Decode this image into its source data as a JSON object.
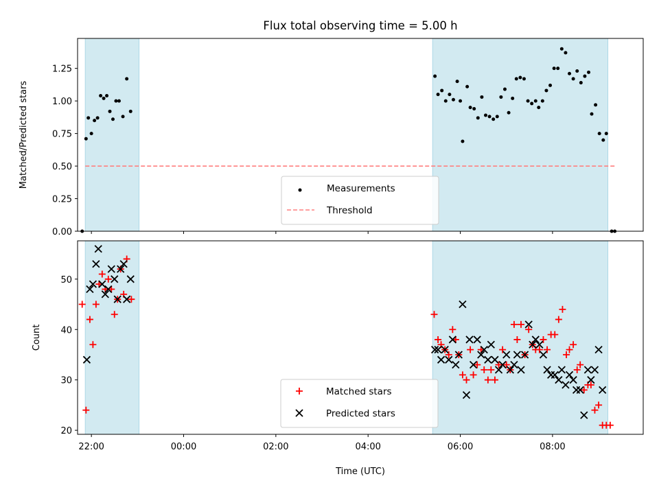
{
  "title": "Flux total observing time = 5.00 h",
  "xlabel": "Time (UTC)",
  "colors": {
    "shade": "#add8e6",
    "measurement": "#000000",
    "threshold": "#ff7f7f",
    "matched": "#ff0000",
    "predicted": "#000000"
  },
  "chart_data": [
    {
      "type": "scatter",
      "panel": "top",
      "ylabel": "Matched/Predicted stars",
      "xlim": [
        "21:42",
        "09:58"
      ],
      "ylim": [
        0,
        1.48
      ],
      "yticks": [
        "0.00",
        "0.25",
        "0.50",
        "0.75",
        "1.00",
        "1.25"
      ],
      "grid": false,
      "legend_position": "lower-center",
      "shaded_intervals": [
        [
          "21:52",
          "23:02"
        ],
        [
          "05:24",
          "09:12"
        ]
      ],
      "threshold": {
        "name": "Threshold",
        "y": 0.5,
        "x_from": "21:52",
        "x_to": "09:23",
        "style": "dashed"
      },
      "series": [
        {
          "name": "Measurements",
          "marker": "dot",
          "points": [
            [
              "21:48",
              0.0
            ],
            [
              "21:53",
              0.71
            ],
            [
              "21:56",
              0.87
            ],
            [
              "22:00",
              0.75
            ],
            [
              "22:04",
              0.85
            ],
            [
              "22:08",
              0.87
            ],
            [
              "22:12",
              1.04
            ],
            [
              "22:16",
              1.02
            ],
            [
              "22:20",
              1.04
            ],
            [
              "22:24",
              0.92
            ],
            [
              "22:28",
              0.86
            ],
            [
              "22:32",
              1.0
            ],
            [
              "22:36",
              1.0
            ],
            [
              "22:41",
              0.88
            ],
            [
              "22:46",
              1.17
            ],
            [
              "22:51",
              0.92
            ],
            [
              "05:27",
              1.19
            ],
            [
              "05:31",
              1.05
            ],
            [
              "05:36",
              1.08
            ],
            [
              "05:41",
              1.0
            ],
            [
              "05:46",
              1.05
            ],
            [
              "05:51",
              1.01
            ],
            [
              "05:56",
              1.15
            ],
            [
              "06:00",
              1.0
            ],
            [
              "06:03",
              0.69
            ],
            [
              "06:09",
              1.11
            ],
            [
              "06:13",
              0.95
            ],
            [
              "06:18",
              0.94
            ],
            [
              "06:23",
              0.87
            ],
            [
              "06:28",
              1.03
            ],
            [
              "06:33",
              0.89
            ],
            [
              "06:38",
              0.88
            ],
            [
              "06:43",
              0.86
            ],
            [
              "06:48",
              0.88
            ],
            [
              "06:53",
              1.03
            ],
            [
              "06:58",
              1.09
            ],
            [
              "07:03",
              0.91
            ],
            [
              "07:08",
              1.02
            ],
            [
              "07:13",
              1.17
            ],
            [
              "07:18",
              1.18
            ],
            [
              "07:23",
              1.17
            ],
            [
              "07:28",
              1.0
            ],
            [
              "07:33",
              0.98
            ],
            [
              "07:38",
              1.0
            ],
            [
              "07:42",
              0.95
            ],
            [
              "07:47",
              1.0
            ],
            [
              "07:52",
              1.08
            ],
            [
              "07:57",
              1.12
            ],
            [
              "08:02",
              1.25
            ],
            [
              "08:07",
              1.25
            ],
            [
              "08:12",
              1.4
            ],
            [
              "08:17",
              1.37
            ],
            [
              "08:22",
              1.21
            ],
            [
              "08:27",
              1.17
            ],
            [
              "08:32",
              1.23
            ],
            [
              "08:37",
              1.14
            ],
            [
              "08:42",
              1.19
            ],
            [
              "08:47",
              1.22
            ],
            [
              "08:51",
              0.9
            ],
            [
              "08:56",
              0.97
            ],
            [
              "09:01",
              0.75
            ],
            [
              "09:06",
              0.7
            ],
            [
              "09:10",
              0.75
            ],
            [
              "09:17",
              0.0
            ],
            [
              "09:21",
              0.0
            ]
          ]
        }
      ]
    },
    {
      "type": "scatter",
      "panel": "bottom",
      "ylabel": "Count",
      "xlim": [
        "21:42",
        "09:58"
      ],
      "ylim": [
        19.2,
        57.6
      ],
      "yticks": [
        "20",
        "30",
        "40",
        "50"
      ],
      "grid": false,
      "legend_position": "lower-center",
      "shaded_intervals": [
        [
          "21:52",
          "23:02"
        ],
        [
          "05:24",
          "09:12"
        ]
      ],
      "xticks": [
        "22:00",
        "00:00",
        "02:00",
        "04:00",
        "06:00",
        "08:00"
      ],
      "series": [
        {
          "name": "Matched stars",
          "marker": "plus",
          "points": [
            [
              "21:48",
              45
            ],
            [
              "21:53",
              24
            ],
            [
              "21:58",
              42
            ],
            [
              "22:02",
              37
            ],
            [
              "22:06",
              45
            ],
            [
              "22:10",
              49
            ],
            [
              "22:14",
              51
            ],
            [
              "22:18",
              48
            ],
            [
              "22:22",
              50
            ],
            [
              "22:26",
              48
            ],
            [
              "22:30",
              43
            ],
            [
              "22:34",
              46
            ],
            [
              "22:38",
              52
            ],
            [
              "22:42",
              47
            ],
            [
              "22:46",
              54
            ],
            [
              "22:52",
              46
            ],
            [
              "05:26",
              43
            ],
            [
              "05:31",
              38
            ],
            [
              "05:35",
              37
            ],
            [
              "05:40",
              36
            ],
            [
              "05:45",
              35
            ],
            [
              "05:50",
              40
            ],
            [
              "05:54",
              38
            ],
            [
              "05:58",
              35
            ],
            [
              "06:03",
              31
            ],
            [
              "06:08",
              30
            ],
            [
              "06:13",
              36
            ],
            [
              "06:17",
              31
            ],
            [
              "06:22",
              33
            ],
            [
              "06:27",
              36
            ],
            [
              "06:31",
              32
            ],
            [
              "06:36",
              30
            ],
            [
              "06:40",
              32
            ],
            [
              "06:45",
              30
            ],
            [
              "06:50",
              33
            ],
            [
              "06:55",
              36
            ],
            [
              "07:00",
              33
            ],
            [
              "07:05",
              32
            ],
            [
              "07:10",
              41
            ],
            [
              "07:14",
              38
            ],
            [
              "07:19",
              41
            ],
            [
              "07:24",
              35
            ],
            [
              "07:29",
              40
            ],
            [
              "07:34",
              37
            ],
            [
              "07:38",
              36
            ],
            [
              "07:43",
              36
            ],
            [
              "07:48",
              38
            ],
            [
              "07:53",
              36
            ],
            [
              "07:58",
              39
            ],
            [
              "08:03",
              39
            ],
            [
              "08:08",
              42
            ],
            [
              "08:13",
              44
            ],
            [
              "08:18",
              35
            ],
            [
              "08:22",
              36
            ],
            [
              "08:27",
              37
            ],
            [
              "08:32",
              32
            ],
            [
              "08:36",
              33
            ],
            [
              "08:41",
              28
            ],
            [
              "08:46",
              29
            ],
            [
              "08:50",
              29
            ],
            [
              "08:55",
              24
            ],
            [
              "09:00",
              25
            ],
            [
              "09:05",
              21
            ],
            [
              "09:10",
              21
            ],
            [
              "09:15",
              21
            ]
          ]
        },
        {
          "name": "Predicted stars",
          "marker": "x",
          "points": [
            [
              "21:54",
              34
            ],
            [
              "21:58",
              48
            ],
            [
              "22:02",
              49
            ],
            [
              "22:06",
              53
            ],
            [
              "22:09",
              56
            ],
            [
              "22:14",
              49
            ],
            [
              "22:18",
              47
            ],
            [
              "22:22",
              48
            ],
            [
              "22:26",
              52
            ],
            [
              "22:30",
              50
            ],
            [
              "22:34",
              46
            ],
            [
              "22:38",
              52
            ],
            [
              "22:42",
              53
            ],
            [
              "22:46",
              46
            ],
            [
              "22:51",
              50
            ],
            [
              "05:27",
              36
            ],
            [
              "05:31",
              36
            ],
            [
              "05:35",
              34
            ],
            [
              "05:40",
              36
            ],
            [
              "05:45",
              34
            ],
            [
              "05:50",
              38
            ],
            [
              "05:54",
              33
            ],
            [
              "05:58",
              35
            ],
            [
              "06:03",
              45
            ],
            [
              "06:08",
              27
            ],
            [
              "06:12",
              38
            ],
            [
              "06:17",
              33
            ],
            [
              "06:22",
              38
            ],
            [
              "06:27",
              35
            ],
            [
              "06:31",
              36
            ],
            [
              "06:36",
              34
            ],
            [
              "06:40",
              37
            ],
            [
              "06:45",
              34
            ],
            [
              "06:50",
              32
            ],
            [
              "06:55",
              33
            ],
            [
              "07:00",
              35
            ],
            [
              "07:05",
              32
            ],
            [
              "07:10",
              33
            ],
            [
              "07:14",
              35
            ],
            [
              "07:19",
              32
            ],
            [
              "07:24",
              35
            ],
            [
              "07:29",
              41
            ],
            [
              "07:34",
              37
            ],
            [
              "07:38",
              38
            ],
            [
              "07:43",
              37
            ],
            [
              "07:48",
              35
            ],
            [
              "07:53",
              32
            ],
            [
              "07:58",
              31
            ],
            [
              "08:03",
              31
            ],
            [
              "08:08",
              30
            ],
            [
              "08:12",
              32
            ],
            [
              "08:17",
              29
            ],
            [
              "08:22",
              31
            ],
            [
              "08:27",
              30
            ],
            [
              "08:31",
              28
            ],
            [
              "08:36",
              28
            ],
            [
              "08:41",
              23
            ],
            [
              "08:46",
              32
            ],
            [
              "08:50",
              30
            ],
            [
              "08:55",
              32
            ],
            [
              "09:00",
              36
            ],
            [
              "09:05",
              28
            ]
          ]
        }
      ]
    }
  ]
}
